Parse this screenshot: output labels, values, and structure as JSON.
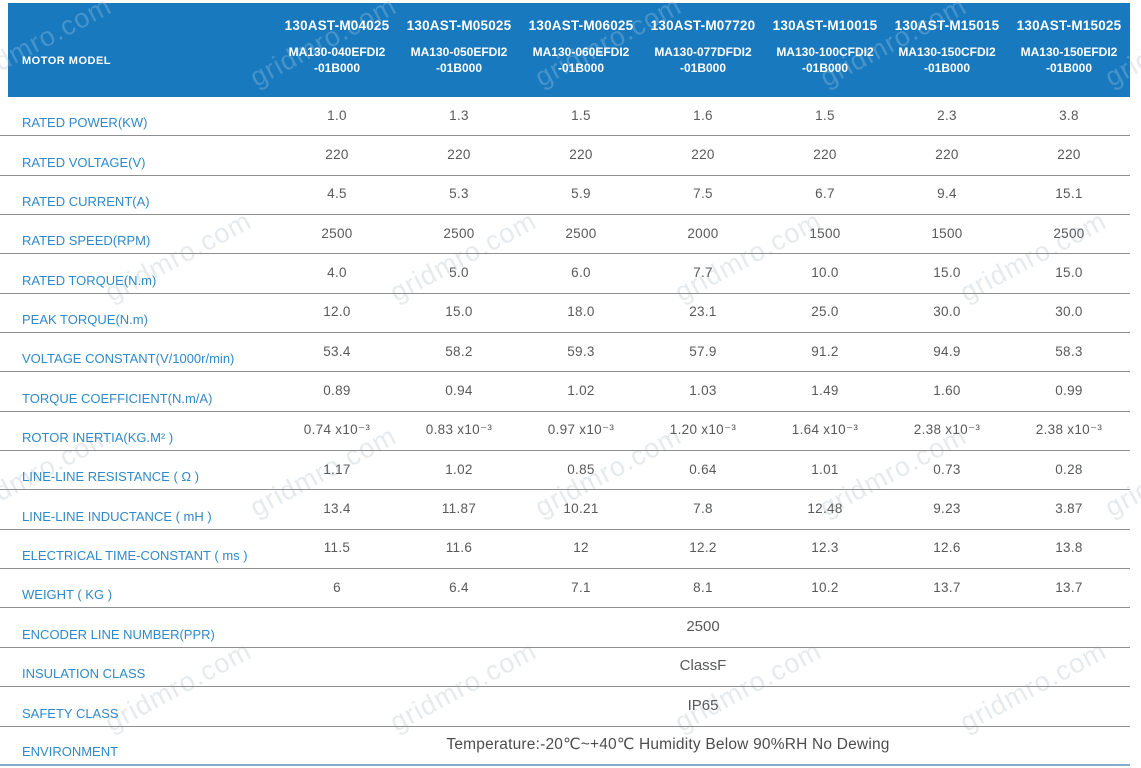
{
  "watermark": {
    "text": "gridmro.com"
  },
  "header": {
    "row_label": "MOTOR MODEL",
    "columns": [
      {
        "model": "130AST-M04025",
        "part_line1": "MA130-040EFDI2",
        "part_line2": "-01B000"
      },
      {
        "model": "130AST-M05025",
        "part_line1": "MA130-050EFDI2",
        "part_line2": "-01B000"
      },
      {
        "model": "130AST-M06025",
        "part_line1": "MA130-060EFDI2",
        "part_line2": "-01B000"
      },
      {
        "model": "130AST-M07720",
        "part_line1": "MA130-077DFDI2",
        "part_line2": "-01B000"
      },
      {
        "model": "130AST-M10015",
        "part_line1": "MA130-100CFDI2",
        "part_line2": "-01B000"
      },
      {
        "model": "130AST-M15015",
        "part_line1": "MA130-150CFDI2",
        "part_line2": "-01B000"
      },
      {
        "model": "130AST-M15025",
        "part_line1": "MA130-150EFDI2",
        "part_line2": "-01B000"
      }
    ]
  },
  "rows": [
    {
      "label": "RATED POWER(KW)",
      "values": [
        "1.0",
        "1.3",
        "1.5",
        "1.6",
        "1.5",
        "2.3",
        "3.8"
      ]
    },
    {
      "label": "RATED VOLTAGE(V)",
      "values": [
        "220",
        "220",
        "220",
        "220",
        "220",
        "220",
        "220"
      ]
    },
    {
      "label": "RATED CURRENT(A)",
      "values": [
        "4.5",
        "5.3",
        "5.9",
        "7.5",
        "6.7",
        "9.4",
        "15.1"
      ]
    },
    {
      "label": "RATED SPEED(RPM)",
      "values": [
        "2500",
        "2500",
        "2500",
        "2000",
        "1500",
        "1500",
        "2500"
      ]
    },
    {
      "label": "RATED TORQUE(N.m)",
      "values": [
        "4.0",
        "5.0",
        "6.0",
        "7.7",
        "10.0",
        "15.0",
        "15.0"
      ]
    },
    {
      "label": "PEAK TORQUE(N.m)",
      "values": [
        "12.0",
        "15.0",
        "18.0",
        "23.1",
        "25.0",
        "30.0",
        "30.0"
      ]
    },
    {
      "label": "VOLTAGE CONSTANT(V/1000r/min)",
      "values": [
        "53.4",
        "58.2",
        "59.3",
        "57.9",
        "91.2",
        "94.9",
        "58.3"
      ]
    },
    {
      "label": "TORQUE COEFFICIENT(N.m/A)",
      "values": [
        "0.89",
        "0.94",
        "1.02",
        "1.03",
        "1.49",
        "1.60",
        "0.99"
      ]
    },
    {
      "label": "ROTOR INERTIA(KG.M² )",
      "values": [
        "0.74 x10⁻³",
        "0.83 x10⁻³",
        "0.97 x10⁻³",
        "1.20 x10⁻³",
        "1.64 x10⁻³",
        "2.38 x10⁻³",
        "2.38 x10⁻³"
      ]
    },
    {
      "label": "LINE-LINE RESISTANCE ( Ω )",
      "values": [
        "1.17",
        "1.02",
        "0.85",
        "0.64",
        "1.01",
        "0.73",
        "0.28"
      ]
    },
    {
      "label": "LINE-LINE INDUCTANCE ( mH )",
      "values": [
        "13.4",
        "11.87",
        "10.21",
        "7.8",
        "12.48",
        "9.23",
        "3.87"
      ]
    },
    {
      "label": "ELECTRICAL TIME-CONSTANT ( ms )",
      "values": [
        "11.5",
        "11.6",
        "12",
        "12.2",
        "12.3",
        "12.6",
        "13.8"
      ]
    },
    {
      "label": "WEIGHT ( KG )",
      "values": [
        "6",
        "6.4",
        "7.1",
        "8.1",
        "10.2",
        "13.7",
        "13.7"
      ]
    },
    {
      "label": "ENCODER LINE NUMBER(PPR)",
      "merged_value": "2500"
    },
    {
      "label": "INSULATION CLASS",
      "merged_value": "ClassF"
    },
    {
      "label": "SAFETY CLASS",
      "merged_value": "IP65"
    },
    {
      "label": "ENVIRONMENT",
      "merged_value": "Temperature:-20℃~+40℃  Humidity Below 90%RH No Dewing",
      "large": true
    }
  ],
  "colors": {
    "header_bg": "#1879BE",
    "label_blue": "#3089C8",
    "value_gray": "#58595B",
    "row_line": "#8E8E8E",
    "bottom_line": "#85AECD"
  }
}
